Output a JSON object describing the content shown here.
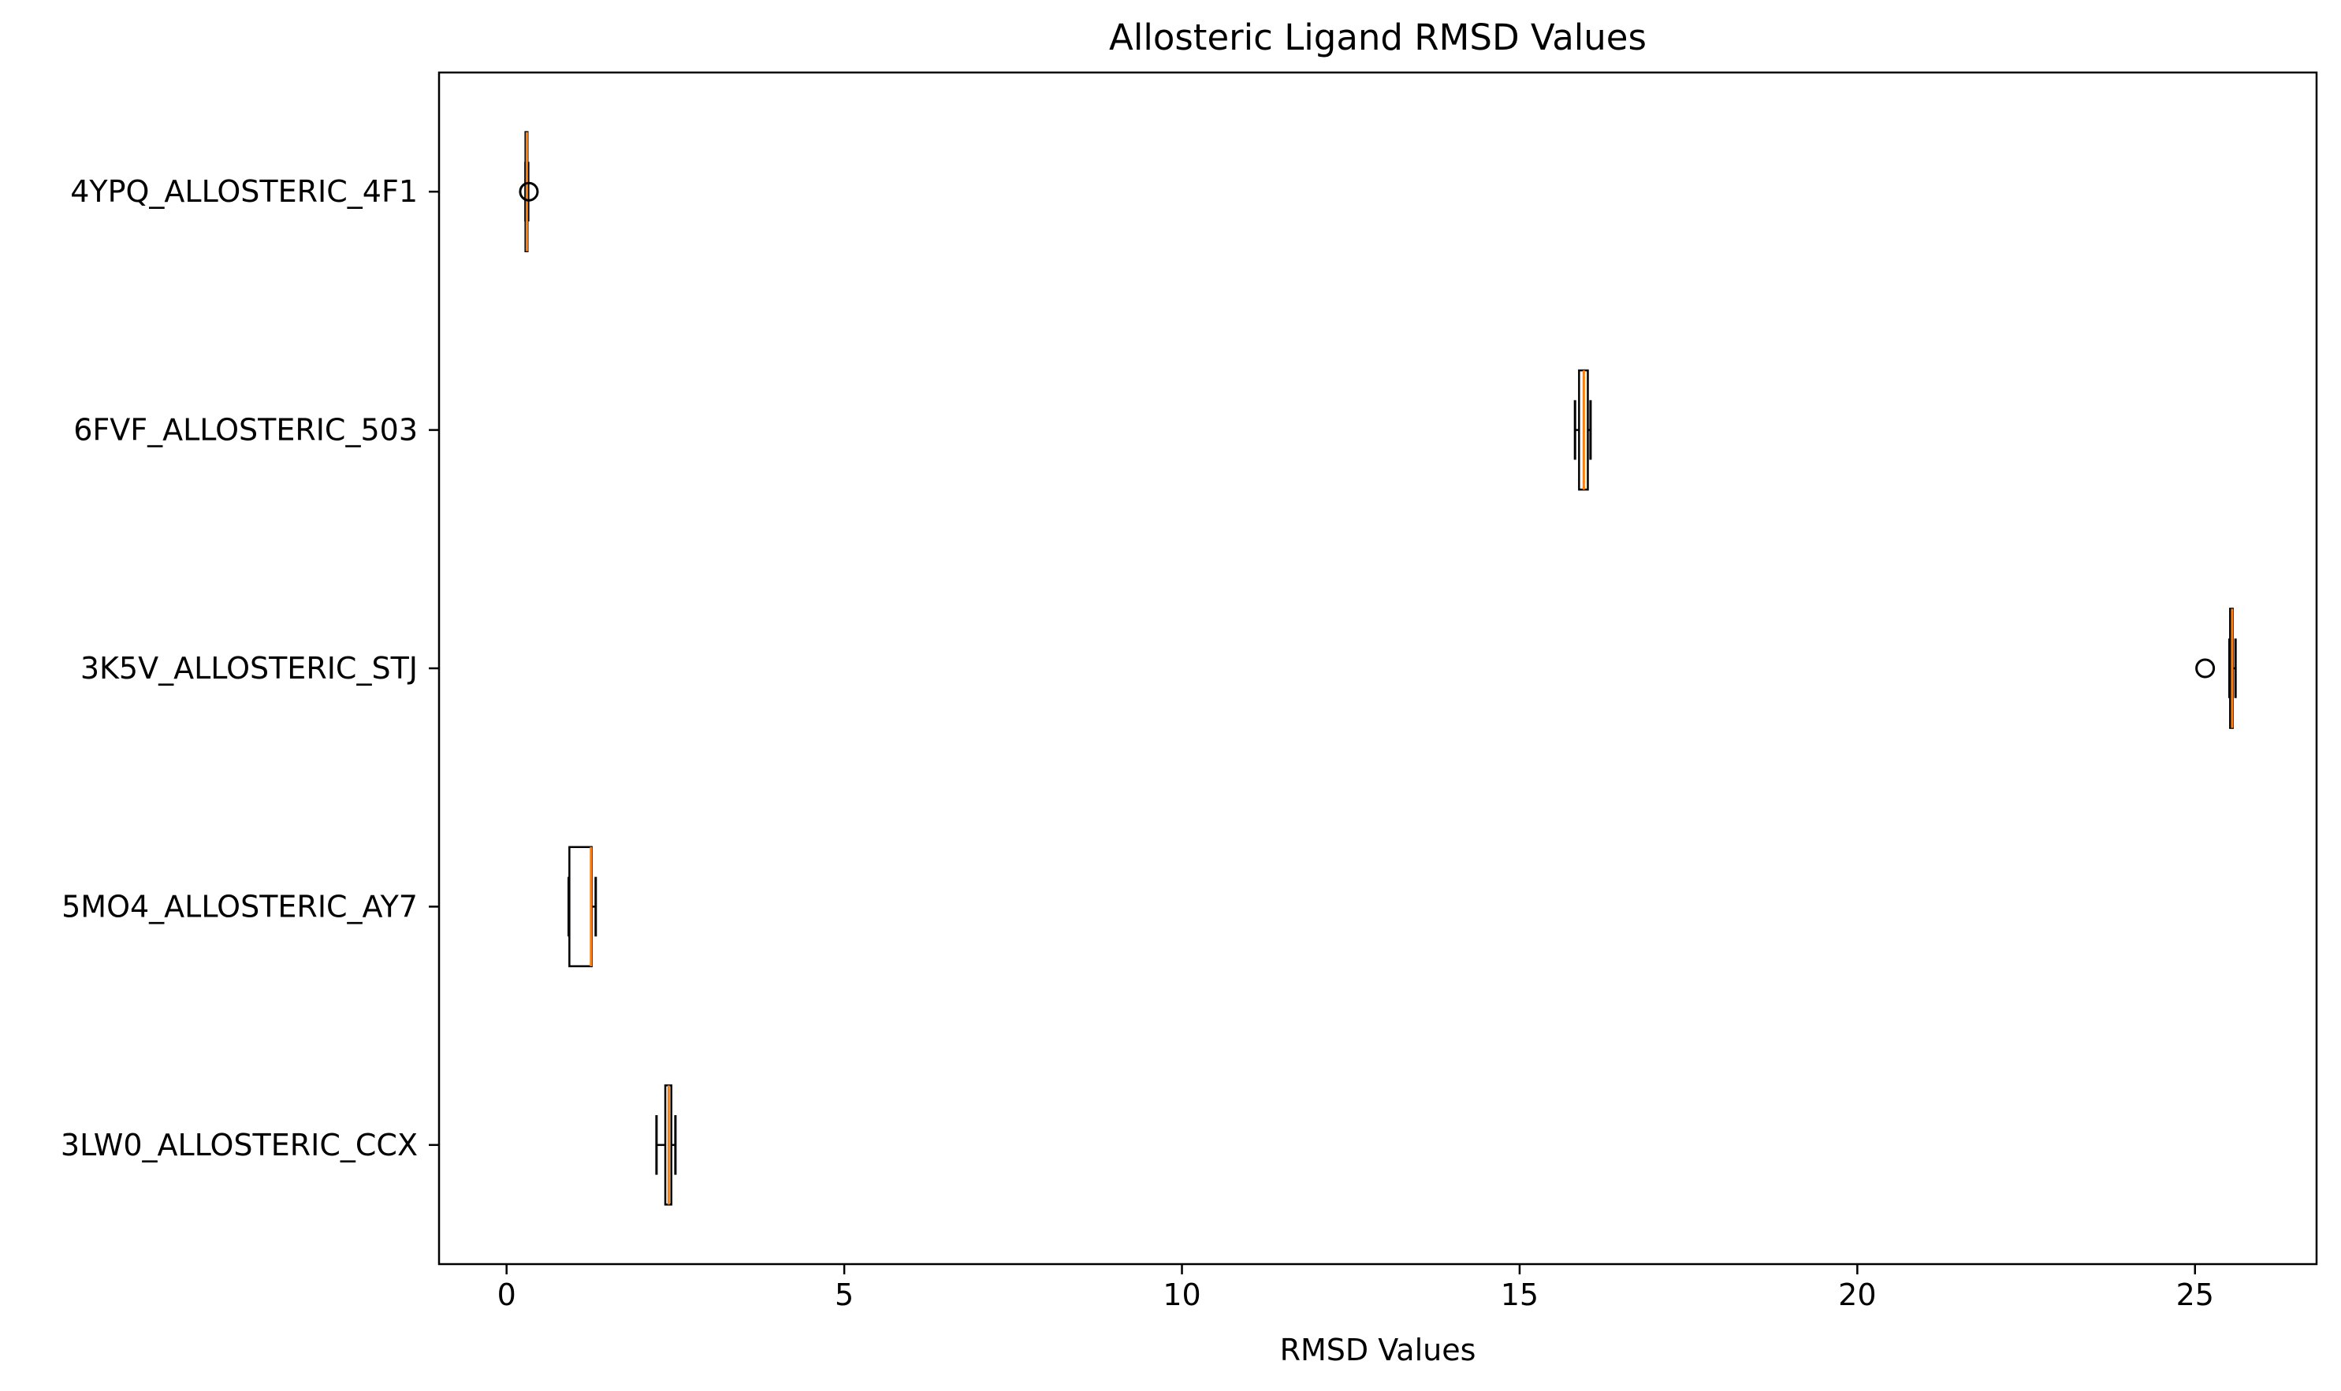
{
  "chart_data": {
    "type": "boxplot",
    "orientation": "horizontal",
    "title": "Allosteric Ligand RMSD Values",
    "xlabel": "RMSD Values",
    "ylabel": "",
    "xlim": [
      -1.0,
      26.8
    ],
    "xticks": [
      0,
      5,
      10,
      15,
      20,
      25
    ],
    "grid": false,
    "categories": [
      "3LW0_ALLOSTERIC_CCX",
      "5MO4_ALLOSTERIC_AY7",
      "3K5V_ALLOSTERIC_STJ",
      "6FVF_ALLOSTERIC_503",
      "4YPQ_ALLOSTERIC_4F1"
    ],
    "boxes": [
      {
        "label": "3LW0_ALLOSTERIC_CCX",
        "whislo": 2.22,
        "q1": 2.35,
        "med": 2.4,
        "q3": 2.44,
        "whishi": 2.5,
        "fliers": []
      },
      {
        "label": "5MO4_ALLOSTERIC_AY7",
        "whislo": 0.92,
        "q1": 0.93,
        "med": 1.25,
        "q3": 1.26,
        "whishi": 1.32,
        "fliers": []
      },
      {
        "label": "3K5V_ALLOSTERIC_STJ",
        "whislo": 25.51,
        "q1": 25.52,
        "med": 25.55,
        "q3": 25.56,
        "whishi": 25.6,
        "fliers": [
          25.15
        ]
      },
      {
        "label": "6FVF_ALLOSTERIC_503",
        "whislo": 15.82,
        "q1": 15.88,
        "med": 15.95,
        "q3": 16.01,
        "whishi": 16.05,
        "fliers": []
      },
      {
        "label": "4YPQ_ALLOSTERIC_4F1",
        "whislo": 0.28,
        "q1": 0.28,
        "med": 0.3,
        "q3": 0.31,
        "whishi": 0.32,
        "fliers": [
          0.33
        ]
      }
    ],
    "colors": {
      "box_edge": "#000000",
      "median": "#ff7f0e",
      "axes": "#000000",
      "background": "#ffffff"
    }
  }
}
